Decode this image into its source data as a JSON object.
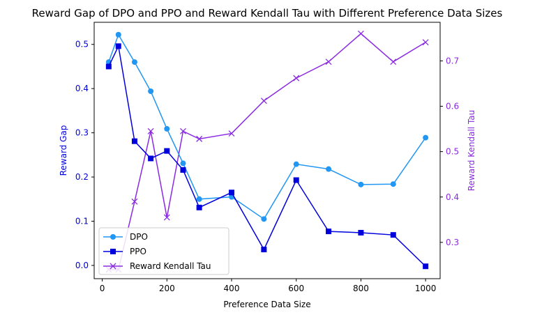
{
  "chart_data": {
    "type": "line",
    "title": "Reward Gap of DPO and PPO and Reward Kendall Tau with Different Preference Data Sizes",
    "xlabel": "Preference Data Size",
    "ylabel_left": "Reward Gap",
    "ylabel_right": "Reward Kendall Tau",
    "x_ticks": [
      0,
      200,
      400,
      600,
      800,
      1000
    ],
    "y_left_ticks": [
      "0.0",
      "0.1",
      "0.2",
      "0.3",
      "0.4",
      "0.5"
    ],
    "y_right_ticks": [
      "0.3",
      "0.4",
      "0.5",
      "0.6",
      "0.7"
    ],
    "xlim": [
      -25,
      1045
    ],
    "ylim_left": [
      -0.03,
      0.55
    ],
    "ylim_right": [
      0.22,
      0.785
    ],
    "grid": false,
    "legend_position": "lower-left",
    "series": [
      {
        "name": "DPO",
        "axis": "left",
        "color": "#2196f3",
        "marker": "circle",
        "x": [
          20,
          50,
          100,
          150,
          200,
          250,
          300,
          400,
          500,
          600,
          700,
          800,
          900,
          1000
        ],
        "values": [
          0.46,
          0.522,
          0.46,
          0.394,
          0.309,
          0.231,
          0.15,
          0.155,
          0.105,
          0.229,
          0.218,
          0.183,
          0.184,
          0.289
        ]
      },
      {
        "name": "PPO",
        "axis": "left",
        "color": "#0000dd",
        "marker": "square",
        "x": [
          20,
          50,
          100,
          150,
          200,
          250,
          300,
          400,
          500,
          600,
          700,
          800,
          900,
          1000
        ],
        "values": [
          0.45,
          0.496,
          0.281,
          0.242,
          0.259,
          0.216,
          0.131,
          0.165,
          0.036,
          0.193,
          0.077,
          0.074,
          0.069,
          -0.002
        ]
      },
      {
        "name": "Reward Kendall Tau",
        "axis": "right",
        "color": "#8a2be2",
        "marker": "x",
        "x": [
          20,
          50,
          100,
          150,
          200,
          250,
          300,
          400,
          500,
          600,
          700,
          800,
          900,
          1000
        ],
        "values": [
          0.24,
          0.24,
          0.39,
          0.545,
          0.355,
          0.545,
          0.528,
          0.54,
          0.612,
          0.662,
          0.698,
          0.76,
          0.698,
          0.741
        ]
      }
    ]
  }
}
